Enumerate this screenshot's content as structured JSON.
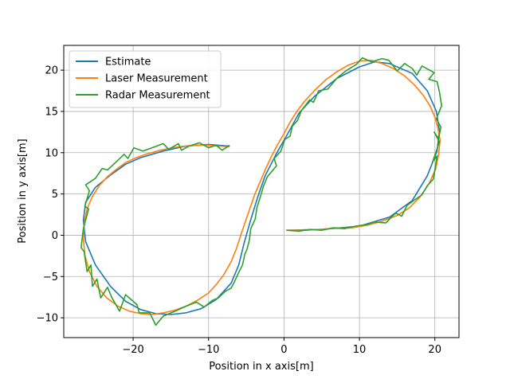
{
  "chart_data": {
    "type": "line",
    "title": "",
    "xlabel": "Position in x axis[m]",
    "ylabel": "Position in y axis[m]",
    "xlim": [
      -29.2,
      23.2
    ],
    "ylim": [
      -12.4,
      23.0
    ],
    "xticks": [
      -20,
      -10,
      0,
      10,
      20
    ],
    "xtick_labels": [
      "−20",
      "−10",
      "0",
      "10",
      "20"
    ],
    "yticks": [
      -10,
      -5,
      0,
      5,
      10,
      15,
      20
    ],
    "ytick_labels": [
      "−10",
      "−5",
      "0",
      "5",
      "10",
      "15",
      "20"
    ],
    "grid": true,
    "legend_position": "top-left",
    "series": [
      {
        "name": "Estimate",
        "color": "#1f77b4",
        "x": [
          0.4,
          5,
          10,
          14,
          17,
          19,
          20.3,
          20.6,
          20.2,
          19,
          17,
          14,
          12,
          10,
          7,
          4,
          2,
          0.5,
          -1,
          -2.5,
          -3.5,
          -4.5,
          -5.3,
          -6,
          -7,
          -9,
          -11,
          -13,
          -15,
          -17,
          -19,
          -21,
          -23,
          -25,
          -26.3,
          -26.6,
          -26.3,
          -25,
          -23,
          -21,
          -19,
          -16,
          -13,
          -10,
          -7.2
        ],
        "y": [
          0.6,
          0.7,
          1.1,
          2.2,
          4.2,
          7.2,
          10.2,
          12.7,
          15,
          17.5,
          19.6,
          20.8,
          21.0,
          20.4,
          19.0,
          16.8,
          14.8,
          12.3,
          9.9,
          7.2,
          4.6,
          1.6,
          -1.0,
          -3.6,
          -5.8,
          -7.8,
          -8.9,
          -9.4,
          -9.6,
          -9.5,
          -9.0,
          -8.0,
          -6.2,
          -3.6,
          -0.8,
          1.8,
          4.0,
          5.8,
          7.3,
          8.6,
          9.4,
          10.2,
          10.8,
          11.0,
          10.8
        ]
      },
      {
        "name": "Laser Measurement",
        "color": "#ff7f0e",
        "x": [
          0.4,
          3,
          6,
          9,
          11,
          13,
          15,
          16.6,
          18,
          19.2,
          20.1,
          20.5,
          20.7,
          20.4,
          20,
          19.4,
          18.5,
          17.3,
          16,
          14.5,
          13,
          11.5,
          10,
          8.5,
          7,
          5.5,
          4,
          2.7,
          1.7,
          0.8,
          0,
          -0.9,
          -1.7,
          -2.5,
          -3.2,
          -3.9,
          -4.5,
          -5.1,
          -5.7,
          -6.3,
          -7,
          -8,
          -9,
          -10,
          -11.5,
          -13,
          -14.5,
          -16,
          -17.5,
          -19,
          -20.5,
          -22,
          -23.5,
          -24.8,
          -25.8,
          -26.4,
          -26.6,
          -26.5,
          -26.1,
          -25.4,
          -24.5,
          -23.4,
          -22.2,
          -21,
          -19.6,
          -18,
          -16.4,
          -14.8,
          -13.2,
          -11.6,
          -10,
          -8.6,
          -7.2
        ],
        "y": [
          0.6,
          0.6,
          0.8,
          0.9,
          1.2,
          1.7,
          2.4,
          3.3,
          4.6,
          6.2,
          8.0,
          9.8,
          11.5,
          13.0,
          14.3,
          15.6,
          16.9,
          18.2,
          19.3,
          20.2,
          20.8,
          21.2,
          21.1,
          20.6,
          19.8,
          18.8,
          17.5,
          16.2,
          15.0,
          13.7,
          12.3,
          10.9,
          9.5,
          7.9,
          6.4,
          4.9,
          3.3,
          1.7,
          0.1,
          -1.6,
          -3.2,
          -4.8,
          -6.0,
          -7.0,
          -7.9,
          -8.6,
          -9.1,
          -9.4,
          -9.6,
          -9.5,
          -9.2,
          -8.6,
          -7.6,
          -6.2,
          -4.4,
          -2.4,
          -0.4,
          1.5,
          3.2,
          4.7,
          6.0,
          7.1,
          8.0,
          8.8,
          9.4,
          9.9,
          10.3,
          10.6,
          10.8,
          10.9,
          10.9,
          10.8,
          10.7
        ]
      },
      {
        "name": "Radar Measurement",
        "color": "#2ca02c",
        "x": [
          0.3,
          2,
          3.5,
          5,
          6.5,
          8,
          9.5,
          11,
          12,
          13.5,
          14.8,
          15.6,
          16.3,
          17.2,
          18.3,
          19.0,
          19.8,
          20.3,
          19.7,
          20.6,
          19.9,
          20.5,
          20.8,
          20.2,
          20.9,
          20.6,
          20.3,
          19.2,
          19.9,
          18.3,
          17.6,
          17.0,
          16.0,
          15.0,
          13.9,
          13.0,
          11.6,
          10.4,
          9.6,
          8.2,
          7.1,
          5.8,
          4.6,
          3.9,
          3.4,
          2.3,
          1.8,
          1.1,
          0.8,
          0.1,
          -0.4,
          -1.3,
          -1.0,
          -2.2,
          -2.7,
          -3.1,
          -3.6,
          -3.8,
          -4.4,
          -4.6,
          -4.9,
          -5.2,
          -5.5,
          -6.0,
          -6.6,
          -7.0,
          -7.8,
          -8.7,
          -9.5,
          -10.6,
          -11.6,
          -13.0,
          -14.7,
          -16.0,
          -17.0,
          -17.8,
          -19.2,
          -19.5,
          -21.0,
          -21.8,
          -22.8,
          -23.4,
          -24.3,
          -24.8,
          -25.4,
          -25.6,
          -26.1,
          -26.5,
          -26.9,
          -26.6,
          -25.9,
          -26.4,
          -25.8,
          -26.3,
          -25.0,
          -24.1,
          -23.4,
          -22.0,
          -21.2,
          -20.7,
          -19.9,
          -18.7,
          -17.5,
          -16.0,
          -15.3,
          -14.0,
          -13.6,
          -12.6,
          -11.2,
          -10.0,
          -9.0,
          -8.2,
          -7.2
        ],
        "y": [
          0.6,
          0.5,
          0.7,
          0.6,
          0.9,
          0.8,
          1.1,
          1.3,
          1.6,
          1.5,
          2.7,
          2.3,
          3.6,
          4.2,
          4.9,
          6.0,
          6.8,
          9.6,
          8.9,
          11.3,
          12.5,
          11.7,
          13.1,
          14.1,
          15.7,
          17.4,
          18.6,
          18.9,
          19.7,
          20.5,
          19.4,
          20.2,
          20.8,
          19.9,
          21.2,
          21.4,
          21.0,
          21.5,
          20.7,
          19.9,
          19.1,
          17.7,
          17.5,
          16.1,
          16.4,
          15.1,
          13.9,
          13.2,
          12.0,
          11.6,
          10.2,
          9.3,
          8.4,
          7.1,
          6.0,
          4.8,
          3.3,
          2.0,
          0.8,
          -0.6,
          -1.7,
          -2.3,
          -3.6,
          -4.5,
          -5.7,
          -6.4,
          -6.8,
          -7.6,
          -7.9,
          -8.7,
          -8.1,
          -8.6,
          -9.3,
          -9.8,
          -10.9,
          -9.4,
          -9.4,
          -8.4,
          -7.2,
          -9.2,
          -7.6,
          -6.3,
          -7.6,
          -5.3,
          -6.2,
          -3.6,
          -4.4,
          -2.0,
          -1.5,
          0.8,
          3.2,
          3.5,
          5.4,
          6.1,
          6.9,
          8.1,
          7.9,
          9.1,
          9.8,
          9.3,
          10.6,
          10.2,
          10.6,
          11.1,
          10.4,
          11.1,
          10.3,
          10.8,
          11.2,
          10.6,
          10.9,
          10.3,
          10.9
        ]
      }
    ]
  }
}
